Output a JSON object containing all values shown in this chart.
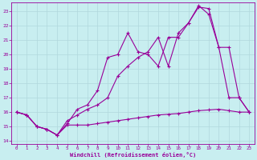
{
  "xlabel": "Windchill (Refroidissement éolien,°C)",
  "line_color": "#990099",
  "bg_color": "#c8eef0",
  "grid_color": "#b0d8dc",
  "xlim": [
    -0.5,
    23.5
  ],
  "ylim": [
    13.8,
    23.6
  ],
  "xticks": [
    0,
    1,
    2,
    3,
    4,
    5,
    6,
    7,
    8,
    9,
    10,
    11,
    12,
    13,
    14,
    15,
    16,
    17,
    18,
    19,
    20,
    21,
    22,
    23
  ],
  "yticks": [
    14,
    15,
    16,
    17,
    18,
    19,
    20,
    21,
    22,
    23
  ],
  "series1_x": [
    0,
    1,
    2,
    3,
    4,
    5,
    6,
    7,
    8,
    9,
    10,
    11,
    12,
    13,
    14,
    15,
    16,
    17,
    18,
    19,
    20,
    21,
    22,
    23
  ],
  "series1_y": [
    16.0,
    15.8,
    15.0,
    14.8,
    14.4,
    15.1,
    15.1,
    15.1,
    15.2,
    15.3,
    15.4,
    15.5,
    15.6,
    15.7,
    15.8,
    15.85,
    15.9,
    16.0,
    16.1,
    16.15,
    16.2,
    16.1,
    16.0,
    16.0
  ],
  "series2_x": [
    0,
    1,
    2,
    3,
    4,
    5,
    6,
    7,
    8,
    9,
    10,
    11,
    12,
    13,
    14,
    15,
    16,
    17,
    18,
    19,
    20,
    21,
    22,
    23
  ],
  "series2_y": [
    16.0,
    15.8,
    15.0,
    14.8,
    14.4,
    15.2,
    16.2,
    16.5,
    17.5,
    19.8,
    20.0,
    21.5,
    20.2,
    20.0,
    19.2,
    21.2,
    21.2,
    22.2,
    23.4,
    22.8,
    20.5,
    17.0,
    17.0,
    16.0
  ],
  "series3_x": [
    0,
    1,
    2,
    3,
    4,
    5,
    6,
    7,
    8,
    9,
    10,
    11,
    12,
    13,
    14,
    15,
    16,
    17,
    18,
    19,
    20,
    21,
    22,
    23
  ],
  "series3_y": [
    16.0,
    15.8,
    15.0,
    14.8,
    14.4,
    15.4,
    15.8,
    16.2,
    16.5,
    17.0,
    18.5,
    19.2,
    19.8,
    20.2,
    21.2,
    19.2,
    21.5,
    22.2,
    23.3,
    23.2,
    20.5,
    20.5,
    17.0,
    16.0
  ]
}
